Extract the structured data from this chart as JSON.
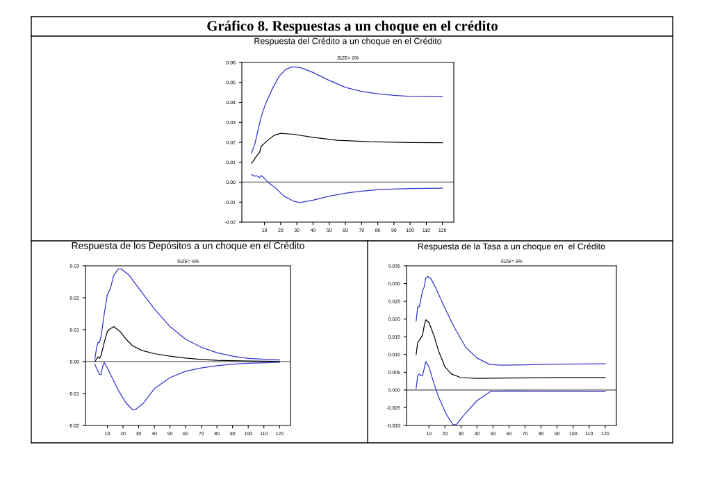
{
  "chart_data": [
    {
      "type": "line",
      "title": "Respuesta del Crédito a un choque en el Crédito",
      "subtitle": "SIZE= 6%",
      "annotations": [
        "Gráfico 8. Respuestas a un choque en el crédito"
      ],
      "xlim": [
        -4,
        127
      ],
      "xticks": [
        10,
        20,
        30,
        40,
        50,
        60,
        70,
        80,
        90,
        100,
        110,
        120
      ],
      "ylim": [
        -0.02,
        0.06
      ],
      "yticks": [
        {
          "value": -0.02,
          "label": "-0.02"
        },
        {
          "value": -0.01,
          "label": "-0.01"
        },
        {
          "value": 0,
          "label": "0.00"
        },
        {
          "value": 0.01,
          "label": "0.01"
        },
        {
          "value": 0.02,
          "label": "0.02"
        },
        {
          "value": 0.03,
          "label": "0.03"
        },
        {
          "value": 0.04,
          "label": "0.04"
        },
        {
          "value": 0.05,
          "label": "0.05"
        },
        {
          "value": 0.06,
          "label": "0.06"
        }
      ],
      "grid": false,
      "ref_lines": [
        {
          "axis": "y",
          "value": 0,
          "color": "#999999"
        }
      ],
      "series": [
        {
          "color": "#3333cc",
          "x": [
            2,
            4,
            5.7,
            8,
            11,
            15,
            19,
            23,
            27,
            32,
            40,
            50,
            60,
            70,
            80,
            90,
            100,
            120
          ],
          "values": [
            0.0145,
            0.019,
            0.025,
            0.033,
            0.04,
            0.047,
            0.053,
            0.0565,
            0.0578,
            0.0575,
            0.055,
            0.051,
            0.0475,
            0.0455,
            0.0443,
            0.0435,
            0.043,
            0.0428
          ]
        },
        {
          "color": "#000000",
          "x": [
            2,
            3,
            5,
            7,
            8,
            12,
            16,
            20,
            28,
            40,
            55,
            75,
            100,
            120
          ],
          "values": [
            0.0095,
            0.0105,
            0.013,
            0.015,
            0.018,
            0.021,
            0.0235,
            0.0245,
            0.024,
            0.0225,
            0.021,
            0.0203,
            0.0199,
            0.0198
          ]
        },
        {
          "color": "#3333cc",
          "x": [
            2,
            4,
            5,
            7,
            8,
            9,
            11,
            13,
            17,
            22,
            28,
            32,
            40,
            50,
            60,
            70,
            80,
            90,
            100,
            120
          ],
          "values": [
            0.0038,
            0.003,
            0.0033,
            0.0023,
            0.0033,
            0.0027,
            0.001,
            -0.0005,
            -0.003,
            -0.007,
            -0.0095,
            -0.0102,
            -0.009,
            -0.007,
            -0.0055,
            -0.0045,
            -0.0038,
            -0.0034,
            -0.0032,
            -0.003
          ]
        }
      ]
    },
    {
      "type": "line",
      "title": "Respuesta de los Depósitos a un choque en el Crédito",
      "subtitle": "SIZE= 6%",
      "xlim": [
        -4,
        127
      ],
      "xticks": [
        10,
        20,
        30,
        40,
        50,
        60,
        70,
        80,
        90,
        100,
        110,
        120
      ],
      "ylim": [
        -0.02,
        0.03
      ],
      "yticks": [
        {
          "value": -0.02,
          "label": "-0.02"
        },
        {
          "value": -0.01,
          "label": "-0.01"
        },
        {
          "value": 0,
          "label": "0.00"
        },
        {
          "value": 0.01,
          "label": "0.01"
        },
        {
          "value": 0.02,
          "label": "0.02"
        },
        {
          "value": 0.03,
          "label": "0.03"
        }
      ],
      "grid": false,
      "ref_lines": [
        {
          "axis": "y",
          "value": 0,
          "color": "#999999"
        }
      ],
      "series": [
        {
          "color": "#3333cc",
          "x": [
            2,
            3,
            4,
            5,
            6,
            8,
            10,
            12,
            14,
            17,
            19,
            24,
            30,
            40,
            50,
            60,
            70,
            80,
            90,
            100,
            120
          ],
          "values": [
            0.0008,
            0.004,
            0.006,
            0.006,
            0.008,
            0.015,
            0.021,
            0.023,
            0.027,
            0.029,
            0.029,
            0.027,
            0.023,
            0.0165,
            0.011,
            0.007,
            0.0045,
            0.0028,
            0.0017,
            0.001,
            0.0005
          ]
        },
        {
          "color": "#000000",
          "x": [
            2,
            4,
            5,
            6,
            8,
            10,
            11,
            14,
            18,
            22,
            26,
            32,
            40,
            50,
            60,
            70,
            80,
            100,
            120
          ],
          "values": [
            0,
            0.0015,
            0.001,
            0.002,
            0.006,
            0.0095,
            0.01,
            0.011,
            0.0095,
            0.007,
            0.005,
            0.0035,
            0.0025,
            0.0017,
            0.0011,
            0.0007,
            0.0004,
            0.0002,
            0.0001
          ]
        },
        {
          "color": "#3333cc",
          "x": [
            2,
            3,
            5,
            6,
            7,
            8,
            10,
            13,
            17,
            22,
            26,
            28,
            33,
            40,
            50,
            60,
            70,
            80,
            90,
            100,
            120
          ],
          "values": [
            -0.0008,
            -0.002,
            -0.004,
            -0.004,
            -0.0015,
            -0.0003,
            -0.002,
            -0.005,
            -0.009,
            -0.013,
            -0.015,
            -0.015,
            -0.013,
            -0.0085,
            -0.005,
            -0.003,
            -0.002,
            -0.0013,
            -0.0008,
            -0.0005,
            -0.0002
          ]
        }
      ]
    },
    {
      "type": "line",
      "title": "Respuesta de la Tasa a un choque en  el Crédito",
      "subtitle": "SIZE= 6%",
      "xlim": [
        -4,
        127
      ],
      "xticks": [
        10,
        20,
        30,
        40,
        50,
        60,
        70,
        80,
        90,
        100,
        110,
        120
      ],
      "ylim": [
        -0.01,
        0.035
      ],
      "yticks": [
        {
          "value": -0.01,
          "label": "-0.010"
        },
        {
          "value": -0.005,
          "label": "-0.005"
        },
        {
          "value": 0,
          "label": "0.000"
        },
        {
          "value": 0.005,
          "label": "0.005"
        },
        {
          "value": 0.01,
          "label": "0.010"
        },
        {
          "value": 0.015,
          "label": "0.015"
        },
        {
          "value": 0.02,
          "label": "0.020"
        },
        {
          "value": 0.025,
          "label": "0.025"
        },
        {
          "value": 0.03,
          "label": "0.030"
        },
        {
          "value": 0.035,
          "label": "0.035"
        }
      ],
      "grid": false,
      "ref_lines": [
        {
          "axis": "y",
          "value": 0,
          "color": "#999999"
        }
      ],
      "series": [
        {
          "color": "#3333cc",
          "x": [
            2,
            3,
            4,
            6,
            7,
            8,
            9,
            11,
            14,
            20,
            26,
            33,
            40,
            48,
            55,
            70,
            90,
            120
          ],
          "values": [
            0.0195,
            0.0235,
            0.0235,
            0.028,
            0.029,
            0.0315,
            0.032,
            0.0315,
            0.029,
            0.023,
            0.0175,
            0.012,
            0.009,
            0.0072,
            0.007,
            0.0071,
            0.0073,
            0.0074
          ]
        },
        {
          "color": "#000000",
          "x": [
            2,
            3,
            4,
            6,
            7,
            8,
            10,
            13,
            16,
            20,
            24,
            30,
            40,
            60,
            90,
            120
          ],
          "values": [
            0.01,
            0.0135,
            0.014,
            0.0155,
            0.018,
            0.0198,
            0.019,
            0.0155,
            0.011,
            0.0065,
            0.0045,
            0.0035,
            0.0033,
            0.0034,
            0.0035,
            0.0035
          ]
        },
        {
          "color": "#3333cc",
          "x": [
            2,
            3,
            4,
            5,
            6,
            8,
            10,
            13,
            16,
            21,
            25,
            27,
            32,
            40,
            48,
            60,
            90,
            120
          ],
          "values": [
            0.0005,
            0.004,
            0.0045,
            0.004,
            0.004,
            0.008,
            0.0065,
            0.002,
            -0.002,
            -0.007,
            -0.0098,
            -0.0098,
            -0.007,
            -0.003,
            -0.0005,
            -0.0003,
            -0.0004,
            -0.0005
          ]
        }
      ]
    }
  ]
}
